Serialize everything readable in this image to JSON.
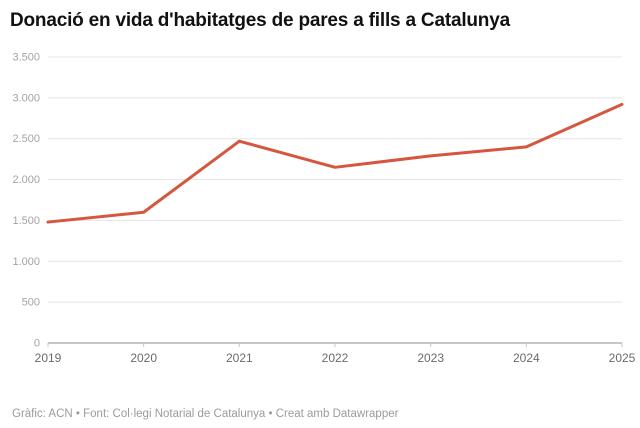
{
  "page": {
    "title": "Donació en vida d'habitatges de pares a fills a Catalunya"
  },
  "chart_data": {
    "type": "line",
    "title": "Donació en vida d'habitatges de pares a fills a Catalunya",
    "x": [
      "2019",
      "2020",
      "2021",
      "2022",
      "2023",
      "2024",
      "2025"
    ],
    "series": [
      {
        "values": [
          1480,
          1600,
          2470,
          2150,
          2290,
          2400,
          2920
        ],
        "color": "#d5573f"
      }
    ],
    "xlabel": "",
    "ylabel": "",
    "ylim": [
      0,
      3500
    ],
    "y_ticks": [
      0,
      500,
      1000,
      1500,
      2000,
      2500,
      3000,
      3500
    ],
    "y_tick_labels": [
      "0",
      "500",
      "1.000",
      "1.500",
      "2.000",
      "2.500",
      "3.000",
      "3.500"
    ],
    "grid": true,
    "legend": "none"
  },
  "colors": {
    "line": "#d5573f",
    "gridline": "#e4e4e4",
    "axis_line": "#909090",
    "tick_mark": "#c6c6c6"
  },
  "footer": {
    "text": "Gràfic: ACN • Font: Col·legi Notarial de Catalunya • Creat amb Datawrapper"
  }
}
